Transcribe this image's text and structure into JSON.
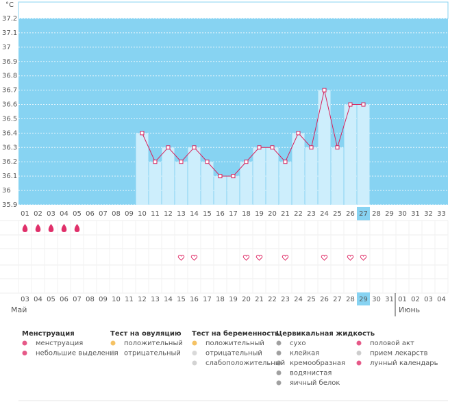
{
  "chart_data": {
    "type": "line",
    "unit": "°C",
    "categories": [
      "01",
      "02",
      "03",
      "04",
      "05",
      "06",
      "07",
      "08",
      "09",
      "10",
      "11",
      "12",
      "13",
      "14",
      "15",
      "16",
      "17",
      "18",
      "19",
      "20",
      "21",
      "22",
      "23",
      "24",
      "25",
      "26",
      "27",
      "28",
      "29",
      "30",
      "31",
      "32",
      "33"
    ],
    "values": [
      null,
      null,
      null,
      null,
      null,
      null,
      null,
      null,
      null,
      36.4,
      36.2,
      36.3,
      36.2,
      36.3,
      36.2,
      36.1,
      36.1,
      36.2,
      36.3,
      36.3,
      36.2,
      36.4,
      36.3,
      36.7,
      36.3,
      36.6,
      36.6,
      null,
      null,
      null,
      null,
      null,
      null
    ],
    "ylim": [
      35.9,
      37.2
    ],
    "yticks": [
      35.9,
      36,
      36.1,
      36.2,
      36.3,
      36.4,
      36.5,
      36.6,
      36.7,
      36.8,
      36.9,
      37,
      37.1,
      37.2
    ],
    "grid": true,
    "color": "#d8205a",
    "bar_color": "#cdeefc",
    "background": "#87d3f2",
    "highlight": 26
  },
  "calendar": {
    "dates": [
      "03",
      "04",
      "05",
      "06",
      "07",
      "08",
      "09",
      "10",
      "11",
      "12",
      "13",
      "14",
      "15",
      "16",
      "17",
      "18",
      "19",
      "20",
      "21",
      "22",
      "23",
      "24",
      "25",
      "26",
      "27",
      "28",
      "29",
      "30",
      "31",
      "01",
      "02",
      "03",
      "04"
    ],
    "weekend": [
      0,
      1,
      7,
      8,
      14,
      15,
      21,
      22,
      28,
      29
    ],
    "months": [
      "Май",
      "Июнь"
    ],
    "month_break": 29,
    "menstruation": [
      0,
      1,
      2,
      3,
      4
    ],
    "intercourse": [
      12,
      13,
      17,
      18,
      20,
      23,
      25,
      26
    ]
  },
  "legend": [
    {
      "title": "Менструация",
      "items": [
        {
          "label": "менструация",
          "color": "#e0306a"
        },
        {
          "label": "небольшие выделения",
          "color": "#e0306a"
        }
      ]
    },
    {
      "title": "Тест на овуляцию",
      "items": [
        {
          "label": "положительный",
          "color": "#f2b33d"
        },
        {
          "label": "отрицательный",
          "color": "#b8b8b8"
        }
      ]
    },
    {
      "title": "Тест на беременность",
      "items": [
        {
          "label": "положительный",
          "color": "#f2b33d"
        },
        {
          "label": "отрицательный",
          "color": "#d0d0d0"
        },
        {
          "label": "слабоположительный",
          "color": "#c8c8c8"
        }
      ]
    },
    {
      "title": "Цервикальная жидкость",
      "items": [
        {
          "label": "сухо",
          "color": "#888"
        },
        {
          "label": "клейкая",
          "color": "#888"
        },
        {
          "label": "кремообразная",
          "color": "#888"
        },
        {
          "label": "водянистая",
          "color": "#888"
        },
        {
          "label": "яичный белок",
          "color": "#888"
        }
      ]
    },
    {
      "items": [
        {
          "label": "половой акт",
          "color": "#e0306a"
        },
        {
          "label": "прием лекарств",
          "color": "#c0c0c0"
        },
        {
          "label": "лунный календарь",
          "color": "#e0306a"
        }
      ]
    }
  ]
}
